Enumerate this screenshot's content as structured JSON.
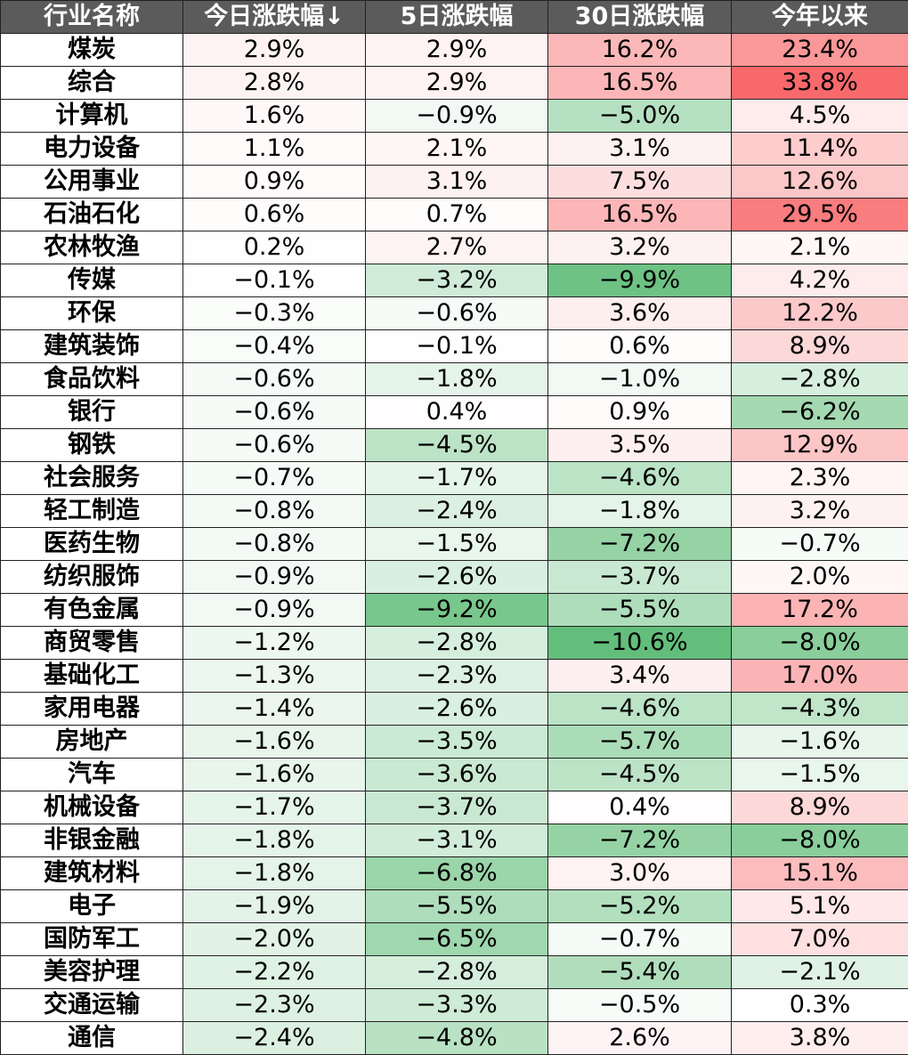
{
  "header": {
    "columns": [
      "行业名称",
      "今日涨跌幅↓",
      "5日涨跌幅",
      "30日涨跌幅",
      "今年以来"
    ]
  },
  "table": {
    "rows": [
      [
        "煤炭",
        "2.9%",
        "2.9%",
        "16.2%",
        "23.4%"
      ],
      [
        "综合",
        "2.8%",
        "2.9%",
        "16.5%",
        "33.8%"
      ],
      [
        "计算机",
        "1.6%",
        "−0.9%",
        "−5.0%",
        "4.5%"
      ],
      [
        "电力设备",
        "1.1%",
        "2.1%",
        "3.1%",
        "11.4%"
      ],
      [
        "公用事业",
        "0.9%",
        "3.1%",
        "7.5%",
        "12.6%"
      ],
      [
        "石油石化",
        "0.6%",
        "0.7%",
        "16.5%",
        "29.5%"
      ],
      [
        "农林牧渔",
        "0.2%",
        "2.7%",
        "3.2%",
        "2.1%"
      ],
      [
        "传媒",
        "−0.1%",
        "−3.2%",
        "−9.9%",
        "4.2%"
      ],
      [
        "环保",
        "−0.3%",
        "−0.6%",
        "3.6%",
        "12.2%"
      ],
      [
        "建筑装饰",
        "−0.4%",
        "−0.1%",
        "0.6%",
        "8.9%"
      ],
      [
        "食品饮料",
        "−0.6%",
        "−1.8%",
        "−1.0%",
        "−2.8%"
      ],
      [
        "银行",
        "−0.6%",
        "0.4%",
        "0.9%",
        "−6.2%"
      ],
      [
        "钢铁",
        "−0.6%",
        "−4.5%",
        "3.5%",
        "12.9%"
      ],
      [
        "社会服务",
        "−0.7%",
        "−1.7%",
        "−4.6%",
        "2.3%"
      ],
      [
        "轻工制造",
        "−0.8%",
        "−2.4%",
        "−1.8%",
        "3.2%"
      ],
      [
        "医药生物",
        "−0.8%",
        "−1.5%",
        "−7.2%",
        "−0.7%"
      ],
      [
        "纺织服饰",
        "−0.9%",
        "−2.6%",
        "−3.7%",
        "2.0%"
      ],
      [
        "有色金属",
        "−0.9%",
        "−9.2%",
        "−5.5%",
        "17.2%"
      ],
      [
        "商贸零售",
        "−1.2%",
        "−2.8%",
        "−10.6%",
        "−8.0%"
      ],
      [
        "基础化工",
        "−1.3%",
        "−2.3%",
        "3.4%",
        "17.0%"
      ],
      [
        "家用电器",
        "−1.4%",
        "−2.6%",
        "−4.6%",
        "−4.3%"
      ],
      [
        "房地产",
        "−1.6%",
        "−3.5%",
        "−5.7%",
        "−1.6%"
      ],
      [
        "汽车",
        "−1.6%",
        "−3.6%",
        "−4.5%",
        "−1.5%"
      ],
      [
        "机械设备",
        "−1.7%",
        "−3.7%",
        "0.4%",
        "8.9%"
      ],
      [
        "非银金融",
        "−1.8%",
        "−3.1%",
        "−7.2%",
        "−8.0%"
      ],
      [
        "建筑材料",
        "−1.8%",
        "−6.8%",
        "3.0%",
        "15.1%"
      ],
      [
        "电子",
        "−1.9%",
        "−5.5%",
        "−5.2%",
        "5.1%"
      ],
      [
        "国防军工",
        "−2.0%",
        "−6.5%",
        "−0.7%",
        "7.0%"
      ],
      [
        "美容护理",
        "−2.2%",
        "−2.8%",
        "−5.4%",
        "−2.1%"
      ],
      [
        "交通运输",
        "−2.3%",
        "−3.3%",
        "−0.5%",
        "0.3%"
      ],
      [
        "通信",
        "−2.4%",
        "−4.8%",
        "2.6%",
        "3.8%"
      ]
    ]
  }
}
